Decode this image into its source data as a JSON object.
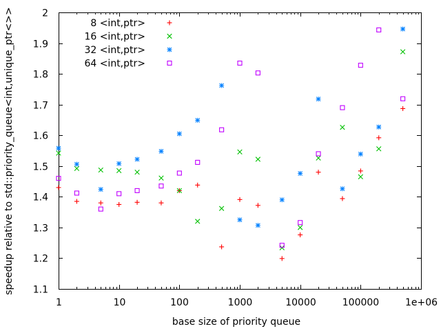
{
  "chart_data": {
    "type": "scatter",
    "title": "",
    "xlabel": "base size of priority queue",
    "ylabel": "speedup relative to std::priority_queue<int,unique_ptr<>>",
    "xscale": "log",
    "xlim": [
      1,
      1000000
    ],
    "ylim": [
      1.1,
      2.0
    ],
    "xticks": [
      {
        "value": 1,
        "label": "1"
      },
      {
        "value": 10,
        "label": "10"
      },
      {
        "value": 100,
        "label": "100"
      },
      {
        "value": 1000,
        "label": "1000"
      },
      {
        "value": 10000,
        "label": "10000"
      },
      {
        "value": 100000,
        "label": "100000"
      },
      {
        "value": 1000000,
        "label": "1e+06"
      }
    ],
    "yticks": [
      {
        "value": 1.1,
        "label": "1.1"
      },
      {
        "value": 1.2,
        "label": "1.2"
      },
      {
        "value": 1.3,
        "label": "1.3"
      },
      {
        "value": 1.4,
        "label": "1.4"
      },
      {
        "value": 1.5,
        "label": "1.5"
      },
      {
        "value": 1.6,
        "label": "1.6"
      },
      {
        "value": 1.7,
        "label": "1.7"
      },
      {
        "value": 1.8,
        "label": "1.8"
      },
      {
        "value": 1.9,
        "label": "1.9"
      },
      {
        "value": 2.0,
        "label": "2"
      }
    ],
    "grid": false,
    "legend_position": "top-left",
    "x": [
      1,
      2,
      5,
      10,
      20,
      50,
      100,
      200,
      500,
      1000,
      2000,
      5000,
      10000,
      20000,
      50000,
      100000,
      200000,
      500000
    ],
    "series": [
      {
        "name": "8 <int,ptr>",
        "marker": "plus",
        "color": "#ff0000",
        "values": [
          1.43,
          1.385,
          1.38,
          1.375,
          1.382,
          1.38,
          1.42,
          1.438,
          1.237,
          1.391,
          1.372,
          1.199,
          1.276,
          1.48,
          1.394,
          1.484,
          1.592,
          1.687
        ]
      },
      {
        "name": "16 <int,ptr>",
        "marker": "cross",
        "color": "#00c000",
        "values": [
          1.542,
          1.492,
          1.487,
          1.485,
          1.48,
          1.461,
          1.42,
          1.32,
          1.362,
          1.546,
          1.522,
          1.234,
          1.3,
          1.526,
          1.626,
          1.465,
          1.556,
          1.872
        ]
      },
      {
        "name": "32 <int,ptr>",
        "marker": "star",
        "color": "#0080ff",
        "values": [
          1.558,
          1.506,
          1.424,
          1.508,
          1.522,
          1.548,
          1.605,
          1.649,
          1.762,
          1.325,
          1.307,
          1.39,
          1.476,
          1.718,
          1.426,
          1.539,
          1.627,
          1.946
        ]
      },
      {
        "name": "64 <int,ptr>",
        "marker": "square",
        "color": "#c000ff",
        "values": [
          1.46,
          1.412,
          1.36,
          1.41,
          1.42,
          1.435,
          1.477,
          1.512,
          1.618,
          1.835,
          1.803,
          1.242,
          1.316,
          1.54,
          1.69,
          1.828,
          1.943,
          1.719
        ]
      }
    ]
  }
}
